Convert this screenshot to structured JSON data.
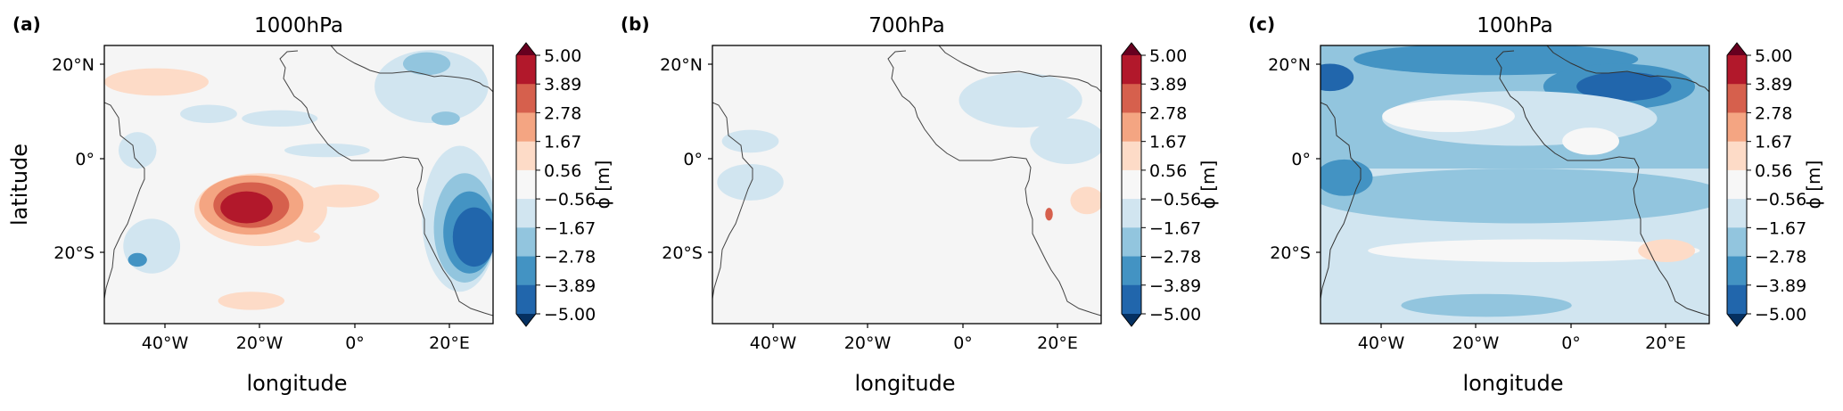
{
  "figure": {
    "colorbar": {
      "ticks": [
        "5.00",
        "3.89",
        "2.78",
        "1.67",
        "0.56",
        "−0.56",
        "−1.67",
        "−2.78",
        "−3.89",
        "−5.00"
      ],
      "label": "ϕ [m]",
      "colors": [
        "#67001f",
        "#b2182b",
        "#d6604d",
        "#f4a582",
        "#fddbc7",
        "#f7f7f7",
        "#d1e5f0",
        "#92c5de",
        "#4393c3",
        "#2166ac",
        "#053061"
      ]
    },
    "panels": [
      {
        "tag": "(a)",
        "title": "1000hPa",
        "ylabel": "latitude",
        "xlabel": "longitude"
      },
      {
        "tag": "(b)",
        "title": "700hPa",
        "ylabel": "",
        "xlabel": "longitude"
      },
      {
        "tag": "(c)",
        "title": "100hPa",
        "ylabel": "",
        "xlabel": "longitude"
      }
    ]
  },
  "chart_data": [
    {
      "type": "heatmap",
      "title": "1000hPa",
      "xlabel": "longitude",
      "ylabel": "latitude",
      "xlim": [
        -55,
        27
      ],
      "ylim": [
        -37,
        24
      ],
      "xticks": [
        -40,
        -20,
        0,
        20
      ],
      "xticklabels": [
        "40°W",
        "20°W",
        "0°",
        "20°E"
      ],
      "yticks": [
        20,
        0,
        -20
      ],
      "yticklabels": [
        "20°N",
        "0°",
        "20°S"
      ],
      "colorbar_label": "ϕ [m]",
      "levels": [
        -5.0,
        -3.89,
        -2.78,
        -1.67,
        -0.56,
        0.56,
        1.67,
        2.78,
        3.89,
        5.0
      ],
      "background": "#f5f5f5",
      "features": [
        {
          "type": "ellipse",
          "cx": -22,
          "cy": -12,
          "rx": 14,
          "ry": 8,
          "value": 1.0
        },
        {
          "type": "ellipse",
          "cx": -24,
          "cy": -11,
          "rx": 11,
          "ry": 6.5,
          "value": 2.2
        },
        {
          "type": "ellipse",
          "cx": -24,
          "cy": -11,
          "rx": 8,
          "ry": 5,
          "value": 3.3
        },
        {
          "type": "ellipse",
          "cx": -25,
          "cy": -11.5,
          "rx": 5.5,
          "ry": 3.5,
          "value": 4.5
        },
        {
          "type": "ellipse",
          "cx": -5,
          "cy": -9,
          "rx": 8,
          "ry": 2.5,
          "value": 1.0
        },
        {
          "type": "ellipse",
          "cx": -44,
          "cy": 16,
          "rx": 11,
          "ry": 3,
          "value": 1.0
        },
        {
          "type": "ellipse",
          "cx": -24,
          "cy": -32,
          "rx": 7,
          "ry": 2,
          "value": 1.0
        },
        {
          "type": "ellipse",
          "cx": -12,
          "cy": -18,
          "rx": 2.5,
          "ry": 1.2,
          "value": 1.0
        },
        {
          "type": "ellipse",
          "cx": -33,
          "cy": 9,
          "rx": 6,
          "ry": 2,
          "value": -1.0
        },
        {
          "type": "ellipse",
          "cx": -18,
          "cy": 8,
          "rx": 8,
          "ry": 1.8,
          "value": -1.0
        },
        {
          "type": "ellipse",
          "cx": -8,
          "cy": 1,
          "rx": 9,
          "ry": 1.5,
          "value": -1.0
        },
        {
          "type": "ellipse",
          "cx": 14,
          "cy": 15,
          "rx": 12,
          "ry": 8,
          "value": -1.0
        },
        {
          "type": "ellipse",
          "cx": 13,
          "cy": 20,
          "rx": 5,
          "ry": 2.5,
          "value": -2.0
        },
        {
          "type": "ellipse",
          "cx": 17,
          "cy": 8,
          "rx": 3,
          "ry": 1.5,
          "value": -2.0
        },
        {
          "type": "ellipse",
          "cx": -48,
          "cy": 1,
          "rx": 4,
          "ry": 4,
          "value": -1.0
        },
        {
          "type": "ellipse",
          "cx": -45,
          "cy": -20,
          "rx": 6,
          "ry": 6,
          "value": -1.0
        },
        {
          "type": "ellipse",
          "cx": -48,
          "cy": -23,
          "rx": 2,
          "ry": 1.5,
          "value": -3.0
        },
        {
          "type": "ellipse",
          "cx": 20,
          "cy": -14,
          "rx": 8,
          "ry": 16,
          "value": -1.0
        },
        {
          "type": "ellipse",
          "cx": 21,
          "cy": -16,
          "rx": 6.5,
          "ry": 12,
          "value": -2.2
        },
        {
          "type": "ellipse",
          "cx": 22,
          "cy": -17,
          "rx": 5.5,
          "ry": 9,
          "value": -3.3
        },
        {
          "type": "ellipse",
          "cx": 23,
          "cy": -18,
          "rx": 4.5,
          "ry": 6.5,
          "value": -4.5
        }
      ]
    },
    {
      "type": "heatmap",
      "title": "700hPa",
      "xlabel": "longitude",
      "ylabel": "",
      "xlim": [
        -55,
        27
      ],
      "ylim": [
        -37,
        24
      ],
      "xticks": [
        -40,
        -20,
        0,
        20
      ],
      "xticklabels": [
        "40°W",
        "20°W",
        "0°",
        "20°E"
      ],
      "yticks": [
        20,
        0,
        -20
      ],
      "yticklabels": [
        "20°N",
        "0°",
        "20°S"
      ],
      "colorbar_label": "ϕ [m]",
      "levels": [
        -5.0,
        -3.89,
        -2.78,
        -1.67,
        -0.56,
        0.56,
        1.67,
        2.78,
        3.89,
        5.0
      ],
      "background": "#f5f5f5",
      "features": [
        {
          "type": "ellipse",
          "cx": 10,
          "cy": 12,
          "rx": 13,
          "ry": 6,
          "value": -1.0
        },
        {
          "type": "ellipse",
          "cx": 20,
          "cy": 3,
          "rx": 8,
          "ry": 5,
          "value": -1.0
        },
        {
          "type": "ellipse",
          "cx": -47,
          "cy": 3,
          "rx": 6,
          "ry": 2.5,
          "value": -1.0
        },
        {
          "type": "ellipse",
          "cx": -47,
          "cy": -6,
          "rx": 7,
          "ry": 4,
          "value": -1.0
        },
        {
          "type": "ellipse",
          "cx": 24,
          "cy": -10,
          "rx": 3.5,
          "ry": 3,
          "value": 1.0
        },
        {
          "type": "ellipse",
          "cx": 16,
          "cy": -13,
          "rx": 0.8,
          "ry": 1.4,
          "value": 3.0
        }
      ]
    },
    {
      "type": "heatmap",
      "title": "100hPa",
      "xlabel": "longitude",
      "ylabel": "",
      "xlim": [
        -55,
        27
      ],
      "ylim": [
        -37,
        24
      ],
      "xticks": [
        -40,
        -20,
        0,
        20
      ],
      "xticklabels": [
        "40°W",
        "20°W",
        "0°",
        "20°E"
      ],
      "yticks": [
        20,
        0,
        -20
      ],
      "yticklabels": [
        "20°N",
        "0°",
        "20°S"
      ],
      "colorbar_label": "ϕ [m]",
      "levels": [
        -5.0,
        -3.89,
        -2.78,
        -1.67,
        -0.56,
        0.56,
        1.67,
        2.78,
        3.89,
        5.0
      ],
      "background": "#d1e5f0",
      "features": [
        {
          "type": "rect",
          "x0": -55,
          "x1": 27,
          "y0": -3,
          "y1": 24,
          "value": -2.2
        },
        {
          "type": "ellipse",
          "cx": -13,
          "cy": -9,
          "rx": 44,
          "ry": 6,
          "value": -2.2
        },
        {
          "type": "ellipse",
          "cx": -18,
          "cy": 21,
          "rx": 30,
          "ry": 3.5,
          "value": -3.3
        },
        {
          "type": "ellipse",
          "cx": 8,
          "cy": 15,
          "rx": 16,
          "ry": 5,
          "value": -3.3
        },
        {
          "type": "ellipse",
          "cx": 9,
          "cy": 15,
          "rx": 10,
          "ry": 3.2,
          "value": -4.5
        },
        {
          "type": "ellipse",
          "cx": -53,
          "cy": 17,
          "rx": 5,
          "ry": 3,
          "value": -4.5
        },
        {
          "type": "ellipse",
          "cx": -13,
          "cy": 8,
          "rx": 29,
          "ry": 6,
          "value": -1.0
        },
        {
          "type": "ellipse",
          "cx": -28,
          "cy": 8.5,
          "rx": 14,
          "ry": 3.5,
          "value": 0.0
        },
        {
          "type": "ellipse",
          "cx": 2,
          "cy": 3,
          "rx": 6,
          "ry": 3,
          "value": 0.0
        },
        {
          "type": "ellipse",
          "cx": -10,
          "cy": -21,
          "rx": 35,
          "ry": 2.5,
          "value": 0.0
        },
        {
          "type": "ellipse",
          "cx": 18,
          "cy": -21,
          "rx": 6,
          "ry": 2.5,
          "value": 1.0
        },
        {
          "type": "ellipse",
          "cx": -20,
          "cy": -33,
          "rx": 18,
          "ry": 2.5,
          "value": -2.0
        },
        {
          "type": "ellipse",
          "cx": -50,
          "cy": -5,
          "rx": 6,
          "ry": 4,
          "value": -3.3
        }
      ]
    }
  ]
}
